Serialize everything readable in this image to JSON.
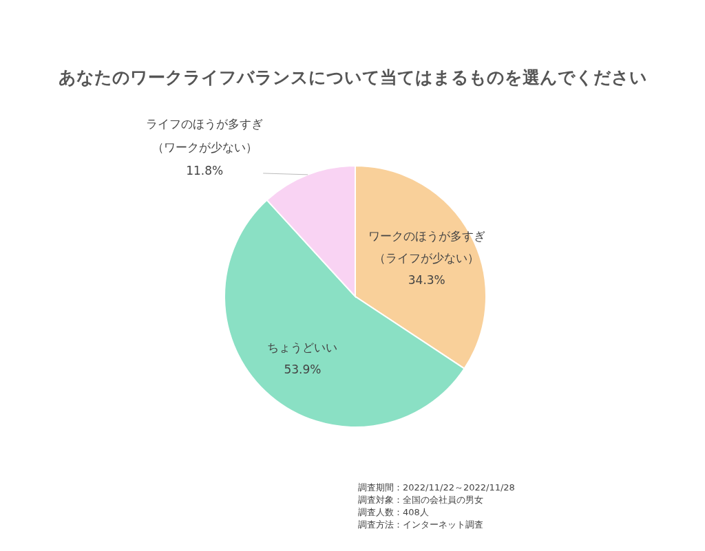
{
  "chart_data": {
    "type": "pie",
    "title": "あなたのワークライフバランスについて当てはまるものを選んでください",
    "categories": [
      "ワークのほうが多すぎ（ライフが少ない）",
      "ちょうどいい",
      "ライフのほうが多すぎ（ワークが少ない）"
    ],
    "values": [
      34.3,
      53.9,
      11.8
    ],
    "value_labels": [
      "34.3%",
      "53.9%",
      "11.8%"
    ],
    "colors": [
      "#f9d09a",
      "#8ae0c4",
      "#f9d3f3"
    ],
    "annotations": [
      "調査期間：2022/11/22～2022/11/28",
      "調査対象：全国の会社員の男女",
      "調査人数：408人",
      "調査方法：インターネット調査"
    ]
  }
}
